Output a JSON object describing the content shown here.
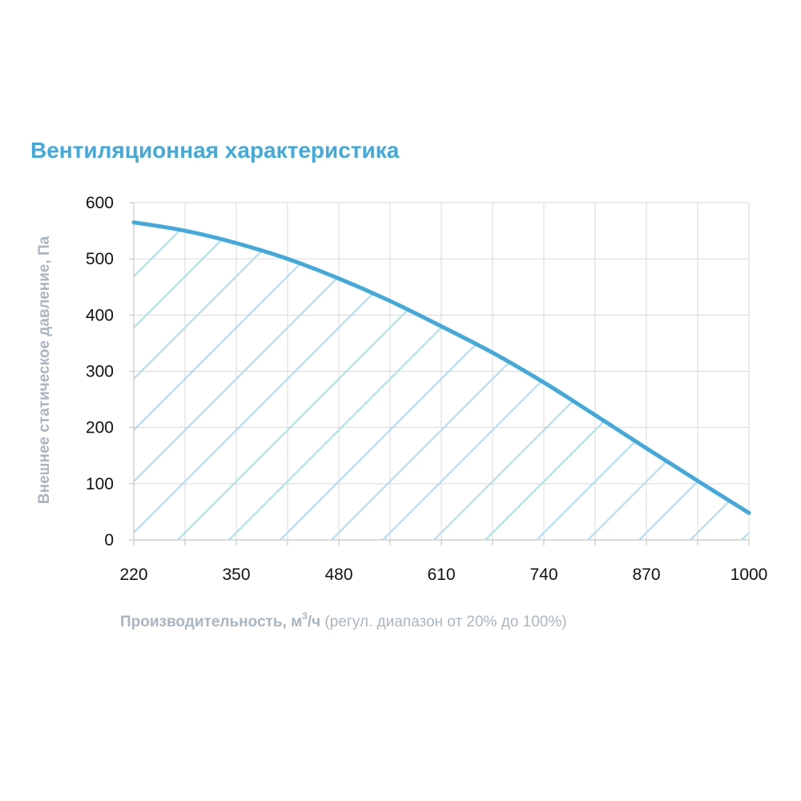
{
  "chart_data": {
    "type": "line",
    "title": "Вентиляционная характеристика",
    "ylabel": "Внешнее статическое давление, Па",
    "xlabel": {
      "main": "Производительность, м",
      "sup": "3",
      "unit": "/ч",
      "note": "(регул. диапазон от 20% до 100%)"
    },
    "xlim": [
      220,
      1000
    ],
    "ylim": [
      0,
      600
    ],
    "x_ticks": [
      "220",
      "350",
      "480",
      "610",
      "740",
      "870",
      "1000"
    ],
    "y_ticks": [
      "0",
      "100",
      "200",
      "300",
      "400",
      "500",
      "600"
    ],
    "grid": true,
    "fill": "hatched area under curve",
    "colors": {
      "curve": "#42a9dc",
      "title": "#42a9dc",
      "hatch": "#b6dcf0",
      "grid": "#d9d9d9",
      "axis_label": "#a9b6c2"
    },
    "series": [
      {
        "x": [
          220,
          285,
          350,
          415,
          480,
          545,
          610,
          675,
          740,
          805,
          870,
          935,
          1000
        ],
        "y": [
          565,
          550,
          528,
          500,
          465,
          425,
          380,
          333,
          280,
          222,
          163,
          105,
          48
        ]
      }
    ]
  }
}
